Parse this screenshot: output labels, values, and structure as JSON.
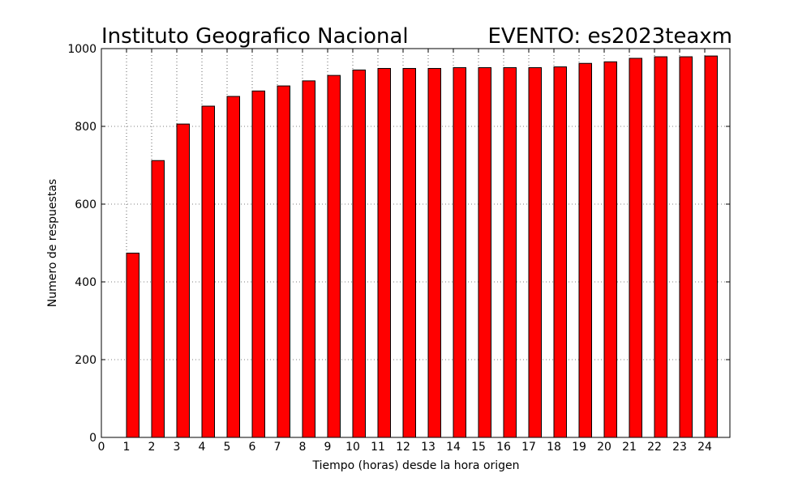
{
  "chart_data": {
    "type": "bar",
    "title_left": "Instituto Geografico Nacional",
    "title_right": "EVENTO: es2023teaxm",
    "xlabel": "Tiempo (horas) desde la hora origen",
    "ylabel": "Numero de respuestas",
    "xlim": [
      0,
      25
    ],
    "ylim": [
      0,
      1000
    ],
    "x_ticks": [
      "0",
      "1",
      "2",
      "3",
      "4",
      "5",
      "6",
      "7",
      "8",
      "9",
      "10",
      "11",
      "12",
      "13",
      "14",
      "15",
      "16",
      "17",
      "18",
      "19",
      "20",
      "21",
      "22",
      "23",
      "24"
    ],
    "y_ticks": [
      "0",
      "200",
      "400",
      "600",
      "800",
      "1000"
    ],
    "grid": true,
    "bar_color": "#ff0000",
    "bar_edge_color": "#000000",
    "x": [
      1,
      2,
      3,
      4,
      5,
      6,
      7,
      8,
      9,
      10,
      11,
      12,
      13,
      14,
      15,
      16,
      17,
      18,
      19,
      20,
      21,
      22,
      23,
      24
    ],
    "values": [
      474,
      712,
      806,
      852,
      877,
      891,
      904,
      917,
      931,
      945,
      949,
      949,
      949,
      951,
      951,
      951,
      951,
      953,
      962,
      966,
      975,
      979,
      979,
      981
    ]
  }
}
